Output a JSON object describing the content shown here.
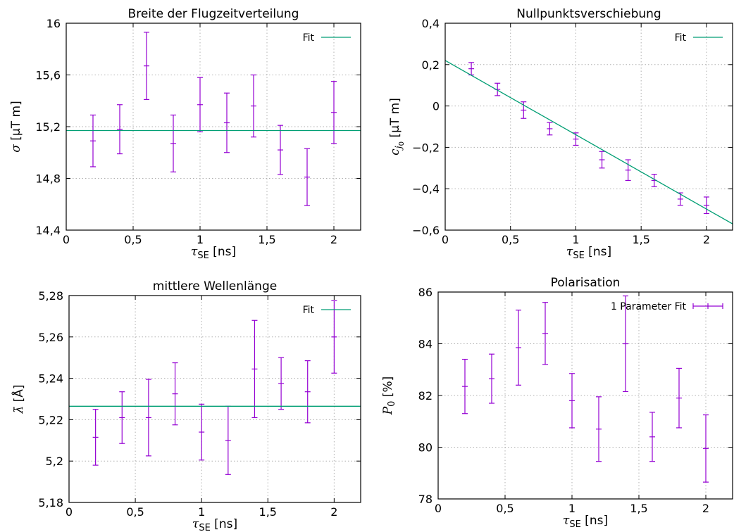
{
  "colors": {
    "data": "#9400d3",
    "fit": "#009e73",
    "grid": "#b0b0b0"
  },
  "chart_data": [
    {
      "type": "scatter",
      "title": "Breite der Flugzeitverteilung",
      "xlabel": "τSE [ns]",
      "ylabel": "σ [µT m]",
      "xlim": [
        0,
        2.2
      ],
      "ylim": [
        14.4,
        16.0
      ],
      "xticks": [
        0,
        0.5,
        1,
        1.5,
        2
      ],
      "xtick_labels": [
        "0",
        "0,5",
        "1",
        "1,5",
        "2"
      ],
      "yticks": [
        14.4,
        14.8,
        15.2,
        15.6,
        16.0
      ],
      "ytick_labels": [
        "14,4",
        "14,8",
        "15,2",
        "15,6",
        "16"
      ],
      "grid": true,
      "legend": "top-right",
      "series": [
        {
          "kind": "errorbar",
          "x": [
            0.2,
            0.4,
            0.6,
            0.8,
            1.0,
            1.2,
            1.4,
            1.6,
            1.8,
            2.0
          ],
          "y": [
            15.09,
            15.18,
            15.67,
            15.07,
            15.37,
            15.23,
            15.36,
            15.02,
            14.81,
            15.31
          ],
          "yerr": [
            0.2,
            0.19,
            0.26,
            0.22,
            0.21,
            0.23,
            0.24,
            0.19,
            0.22,
            0.24
          ]
        },
        {
          "kind": "line",
          "name": "Fit",
          "x": [
            0,
            2.2
          ],
          "y": [
            15.17,
            15.17
          ]
        }
      ]
    },
    {
      "type": "scatter",
      "title": "Nullpunktsverschiebung",
      "xlabel": "τSE [ns]",
      "ylabel": "cj0 [µT m]",
      "xlim": [
        0,
        2.2
      ],
      "ylim": [
        -0.6,
        0.4
      ],
      "xticks": [
        0,
        0.5,
        1,
        1.5,
        2
      ],
      "xtick_labels": [
        "0",
        "0,5",
        "1",
        "1,5",
        "2"
      ],
      "yticks": [
        -0.6,
        -0.4,
        -0.2,
        0,
        0.2,
        0.4
      ],
      "ytick_labels": [
        "−0,6",
        "−0,4",
        "−0,2",
        "0",
        "0,2",
        "0,4"
      ],
      "grid": true,
      "legend": "top-right",
      "series": [
        {
          "kind": "errorbar",
          "x": [
            0.2,
            0.4,
            0.6,
            0.8,
            1.0,
            1.2,
            1.4,
            1.6,
            1.8,
            2.0
          ],
          "y": [
            0.18,
            0.08,
            -0.02,
            -0.11,
            -0.16,
            -0.26,
            -0.31,
            -0.36,
            -0.45,
            -0.48
          ],
          "yerr": [
            0.03,
            0.03,
            0.04,
            0.03,
            0.03,
            0.04,
            0.05,
            0.03,
            0.03,
            0.04
          ]
        },
        {
          "kind": "line",
          "name": "Fit",
          "x": [
            0,
            2.2
          ],
          "y": [
            0.22,
            -0.57
          ]
        }
      ]
    },
    {
      "type": "scatter",
      "title": "mittlere Wellenlänge",
      "xlabel": "τSE [ns]",
      "ylabel": "λ̄ [Å]",
      "xlim": [
        0,
        2.2
      ],
      "ylim": [
        5.18,
        5.28
      ],
      "xticks": [
        0,
        0.5,
        1,
        1.5,
        2
      ],
      "xtick_labels": [
        "0",
        "0,5",
        "1",
        "1,5",
        "2"
      ],
      "yticks": [
        5.18,
        5.2,
        5.22,
        5.24,
        5.26,
        5.28
      ],
      "ytick_labels": [
        "5,18",
        "5,2",
        "5,22",
        "5,24",
        "5,26",
        "5,28"
      ],
      "grid": true,
      "legend": "top-right",
      "series": [
        {
          "kind": "errorbar",
          "x": [
            0.2,
            0.4,
            0.6,
            0.8,
            1.0,
            1.2,
            1.4,
            1.6,
            1.8,
            2.0
          ],
          "y": [
            5.2115,
            5.221,
            5.221,
            5.2325,
            5.214,
            5.21,
            5.2445,
            5.2375,
            5.2335,
            5.26
          ],
          "yerr": [
            0.0135,
            0.0125,
            0.0185,
            0.015,
            0.0135,
            0.0165,
            0.0235,
            0.0125,
            0.015,
            0.0175
          ]
        },
        {
          "kind": "line",
          "name": "Fit",
          "x": [
            0,
            2.2
          ],
          "y": [
            5.2265,
            5.2265
          ]
        }
      ]
    },
    {
      "type": "scatter",
      "title": "Polarisation",
      "xlabel": "τSE [ns]",
      "ylabel": "P0 [%]",
      "xlim": [
        0,
        2.2
      ],
      "ylim": [
        78,
        86
      ],
      "xticks": [
        0,
        0.5,
        1,
        1.5,
        2
      ],
      "xtick_labels": [
        "0",
        "0,5",
        "1",
        "1,5",
        "2"
      ],
      "yticks": [
        78,
        80,
        82,
        84,
        86
      ],
      "ytick_labels": [
        "78",
        "80",
        "82",
        "84",
        "86"
      ],
      "grid": true,
      "legend": "top-right",
      "series": [
        {
          "kind": "errorbar",
          "name": "1 Parameter Fit",
          "x": [
            0.2,
            0.4,
            0.6,
            0.8,
            1.0,
            1.2,
            1.4,
            1.6,
            1.8,
            2.0
          ],
          "y": [
            82.35,
            82.65,
            83.85,
            84.4,
            81.8,
            80.7,
            84.0,
            80.4,
            81.9,
            79.95
          ],
          "yerr": [
            1.05,
            0.95,
            1.45,
            1.2,
            1.05,
            1.25,
            1.85,
            0.95,
            1.15,
            1.3
          ]
        }
      ]
    }
  ]
}
